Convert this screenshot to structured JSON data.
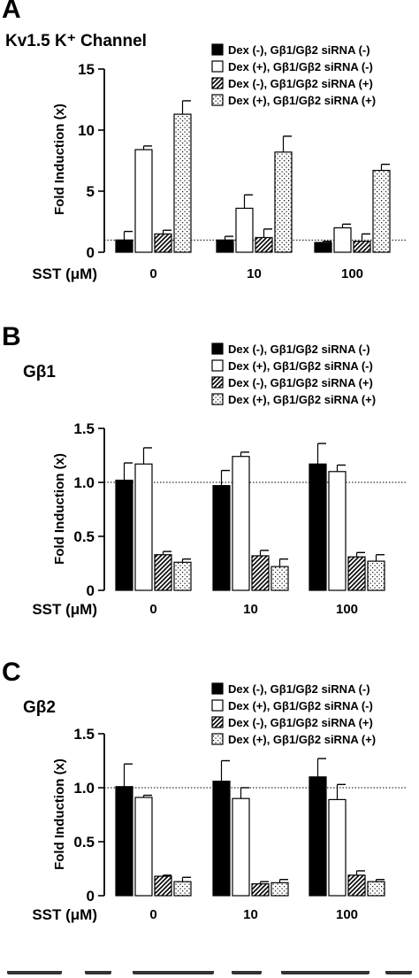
{
  "colors": {
    "ink": "#000000",
    "paper": "#ffffff"
  },
  "series_styles": [
    "solid",
    "open",
    "hatched",
    "dotted"
  ],
  "chart_data": [
    {
      "panel": "A",
      "type": "bar",
      "title": "Kv1.5 K⁺ Channel",
      "ylabel": "Fold Induction (x)",
      "xlabel": "SST (μM)",
      "categories": [
        "0",
        "10",
        "100"
      ],
      "ylim": [
        0,
        15
      ],
      "yticks": [
        "0",
        "5",
        "10",
        "15"
      ],
      "ytick_values": [
        0,
        5,
        10,
        15
      ],
      "reference_line": 1,
      "legend": [
        "Dex (-),  Gβ1/Gβ2 siRNA (-)",
        "Dex (+),  Gβ1/Gβ2 siRNA (-)",
        "Dex (-),  Gβ1/Gβ2 siRNA (+)",
        "Dex (+),  Gβ1/Gβ2 siRNA (+)"
      ],
      "series": [
        {
          "values": [
            1.0,
            1.0,
            0.8
          ],
          "errors": [
            0.7,
            0.3,
            0.1
          ]
        },
        {
          "values": [
            8.4,
            3.6,
            2.0
          ],
          "errors": [
            0.3,
            1.1,
            0.3
          ]
        },
        {
          "values": [
            1.5,
            1.2,
            0.9
          ],
          "errors": [
            0.3,
            0.7,
            0.6
          ]
        },
        {
          "values": [
            11.3,
            8.2,
            6.7
          ],
          "errors": [
            1.1,
            1.3,
            0.5
          ]
        }
      ]
    },
    {
      "panel": "B",
      "type": "bar",
      "title": "Gβ1",
      "ylabel": "Fold Induction (x)",
      "xlabel": "SST (μM)",
      "categories": [
        "0",
        "10",
        "100"
      ],
      "ylim": [
        0,
        1.5
      ],
      "yticks": [
        "0",
        "0.5",
        "1.0",
        "1.5"
      ],
      "ytick_values": [
        0,
        0.5,
        1.0,
        1.5
      ],
      "reference_line": 1.0,
      "legend": [
        "Dex (-),  Gβ1/Gβ2 siRNA (-)",
        "Dex (+),  Gβ1/Gβ2 siRNA (-)",
        "Dex (-),  Gβ1/Gβ2 siRNA (+)",
        "Dex (+),  Gβ1/Gβ2 siRNA (+)"
      ],
      "series": [
        {
          "values": [
            1.02,
            0.97,
            1.17
          ],
          "errors": [
            0.16,
            0.14,
            0.19
          ]
        },
        {
          "values": [
            1.17,
            1.24,
            1.1
          ],
          "errors": [
            0.15,
            0.04,
            0.06
          ]
        },
        {
          "values": [
            0.33,
            0.32,
            0.31
          ],
          "errors": [
            0.03,
            0.05,
            0.04
          ]
        },
        {
          "values": [
            0.26,
            0.22,
            0.27
          ],
          "errors": [
            0.03,
            0.07,
            0.06
          ]
        }
      ]
    },
    {
      "panel": "C",
      "type": "bar",
      "title": "Gβ2",
      "ylabel": "Fold Induction (x)",
      "xlabel": "SST (μM)",
      "categories": [
        "0",
        "10",
        "100"
      ],
      "ylim": [
        0,
        1.5
      ],
      "yticks": [
        "0",
        "0.5",
        "1.0",
        "1.5"
      ],
      "ytick_values": [
        0,
        0.5,
        1.0,
        1.5
      ],
      "reference_line": 1.0,
      "legend": [
        "Dex (-),  Gβ1/Gβ2 siRNA (-)",
        "Dex (+),  Gβ1/Gβ2 siRNA (-)",
        "Dex (-),  Gβ1/Gβ2 siRNA (+)",
        "Dex (+),  Gβ1/Gβ2 siRNA (+)"
      ],
      "series": [
        {
          "values": [
            1.01,
            1.06,
            1.1
          ],
          "errors": [
            0.21,
            0.19,
            0.17
          ]
        },
        {
          "values": [
            0.91,
            0.9,
            0.89
          ],
          "errors": [
            0.02,
            0.1,
            0.14
          ]
        },
        {
          "values": [
            0.18,
            0.11,
            0.19
          ],
          "errors": [
            0.01,
            0.02,
            0.04
          ]
        },
        {
          "values": [
            0.13,
            0.12,
            0.13
          ],
          "errors": [
            0.04,
            0.03,
            0.02
          ]
        }
      ]
    }
  ]
}
